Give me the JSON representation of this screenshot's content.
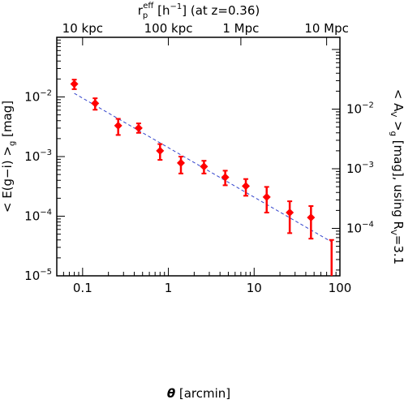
{
  "chart_data": {
    "type": "scatter",
    "x_scale": "log",
    "y_scale": "log",
    "xlim": [
      0.05,
      100
    ],
    "ylim": [
      1e-05,
      0.1
    ],
    "right_ylim": [
      1.6e-05,
      0.16
    ],
    "xlabel_symbol": "θ",
    "xlabel_text": "[arcmin]",
    "ylabel": "< E(g−i) >g [mag]",
    "ylabel_right": "< AV >g [mag], using RV=3.1",
    "top_label": "rpeff [h−1] (at z=0.36)",
    "x_ticks": [
      {
        "value": 0.1,
        "label": "0.1"
      },
      {
        "value": 1,
        "label": "1"
      },
      {
        "value": 10,
        "label": "10"
      },
      {
        "value": 100,
        "label": "100"
      }
    ],
    "y_ticks": [
      {
        "value": 1e-05,
        "base": "10",
        "exp": "−5"
      },
      {
        "value": 0.0001,
        "base": "10",
        "exp": "−4"
      },
      {
        "value": 0.001,
        "base": "10",
        "exp": "−3"
      },
      {
        "value": 0.01,
        "base": "10",
        "exp": "−2"
      }
    ],
    "right_ticks": [
      {
        "value": 0.0001,
        "base": "10",
        "exp": "−4"
      },
      {
        "value": 0.001,
        "base": "10",
        "exp": "−3"
      },
      {
        "value": 0.01,
        "base": "10",
        "exp": "−2"
      }
    ],
    "top_ticks": [
      {
        "theta": 0.1,
        "label": "10 kpc"
      },
      {
        "theta": 1.0,
        "label": "100 kpc"
      },
      {
        "theta": 7.0,
        "label": "1 Mpc"
      },
      {
        "theta": 70.0,
        "label": "10 Mpc"
      }
    ],
    "series": [
      {
        "type": "points_with_errors",
        "color": "#ff0000",
        "points": [
          {
            "x": 0.08,
            "y": 0.0165,
            "lo": 0.0135,
            "hi": 0.0195
          },
          {
            "x": 0.14,
            "y": 0.0078,
            "lo": 0.0061,
            "hi": 0.0095
          },
          {
            "x": 0.26,
            "y": 0.0033,
            "lo": 0.0023,
            "hi": 0.0043
          },
          {
            "x": 0.45,
            "y": 0.003,
            "lo": 0.0025,
            "hi": 0.0036
          },
          {
            "x": 0.8,
            "y": 0.00125,
            "lo": 0.00088,
            "hi": 0.00162
          },
          {
            "x": 1.4,
            "y": 0.00078,
            "lo": 0.00052,
            "hi": 0.001
          },
          {
            "x": 2.6,
            "y": 0.00068,
            "lo": 0.00052,
            "hi": 0.00085
          },
          {
            "x": 4.6,
            "y": 0.00045,
            "lo": 0.00033,
            "hi": 0.00058
          },
          {
            "x": 8.0,
            "y": 0.00032,
            "lo": 0.00022,
            "hi": 0.00042
          },
          {
            "x": 14.0,
            "y": 0.00021,
            "lo": 0.000115,
            "hi": 0.00031
          },
          {
            "x": 26.0,
            "y": 0.000115,
            "lo": 5.2e-05,
            "hi": 0.000178
          },
          {
            "x": 46.0,
            "y": 9.5e-05,
            "lo": 4.2e-05,
            "hi": 0.000148
          },
          {
            "x": 80.0,
            "y": null,
            "lo": 1e-05,
            "hi": 4e-05
          }
        ]
      },
      {
        "type": "power_law_fit",
        "style": "dashed",
        "color": "#3344cc",
        "x": [
          0.08,
          80.0
        ],
        "y": [
          0.0115,
          3.7e-05
        ]
      }
    ]
  }
}
